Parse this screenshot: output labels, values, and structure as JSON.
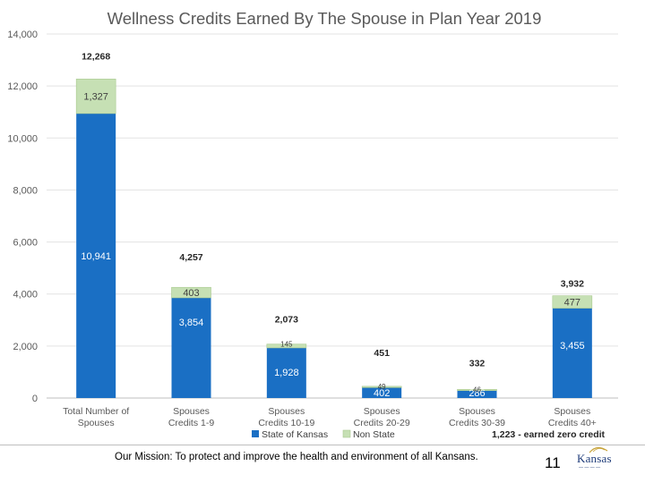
{
  "chart_data": {
    "type": "bar",
    "stacked": true,
    "title": "Wellness Credits Earned By The Spouse  in Plan Year 2019",
    "categories": [
      [
        "Total Number of",
        "Spouses"
      ],
      [
        "Spouses",
        "Credits 1-9"
      ],
      [
        "Spouses",
        "Credits 10-19"
      ],
      [
        "Spouses",
        "Credits 20-29"
      ],
      [
        "Spouses",
        "Credits 30-39"
      ],
      [
        "Spouses",
        "Credits 40+"
      ]
    ],
    "series": [
      {
        "name": "State of Kansas",
        "color": "#1a6fc4",
        "values": [
          10941,
          3854,
          1928,
          402,
          286,
          3455
        ],
        "labels": [
          "10,941",
          "3,854",
          "1,928",
          "402",
          "286",
          "3,455"
        ]
      },
      {
        "name": "Non State",
        "color": "#c6e0b4",
        "values": [
          1327,
          403,
          145,
          49,
          46,
          477
        ],
        "labels": [
          "1,327",
          "403",
          "145",
          "49",
          "46",
          "477"
        ]
      }
    ],
    "totals": [
      12268,
      4257,
      2073,
      451,
      332,
      3932
    ],
    "total_labels": [
      "12,268",
      "4,257",
      "2,073",
      "451",
      "332",
      "3,932"
    ],
    "ylim": [
      0,
      14000
    ],
    "yticks": [
      0,
      2000,
      4000,
      6000,
      8000,
      10000,
      12000,
      14000
    ],
    "ytick_labels": [
      "0",
      "2,000",
      "4,000",
      "6,000",
      "8,000",
      "10,000",
      "12,000",
      "14,000"
    ],
    "grid": true,
    "legend_position": "bottom",
    "annotation": "1,223 - earned zero credit"
  },
  "footer": {
    "mission": "Our Mission: To protect and improve the health and environment of all Kansans.",
    "page_number": "11",
    "logo_text": "Kansas"
  }
}
